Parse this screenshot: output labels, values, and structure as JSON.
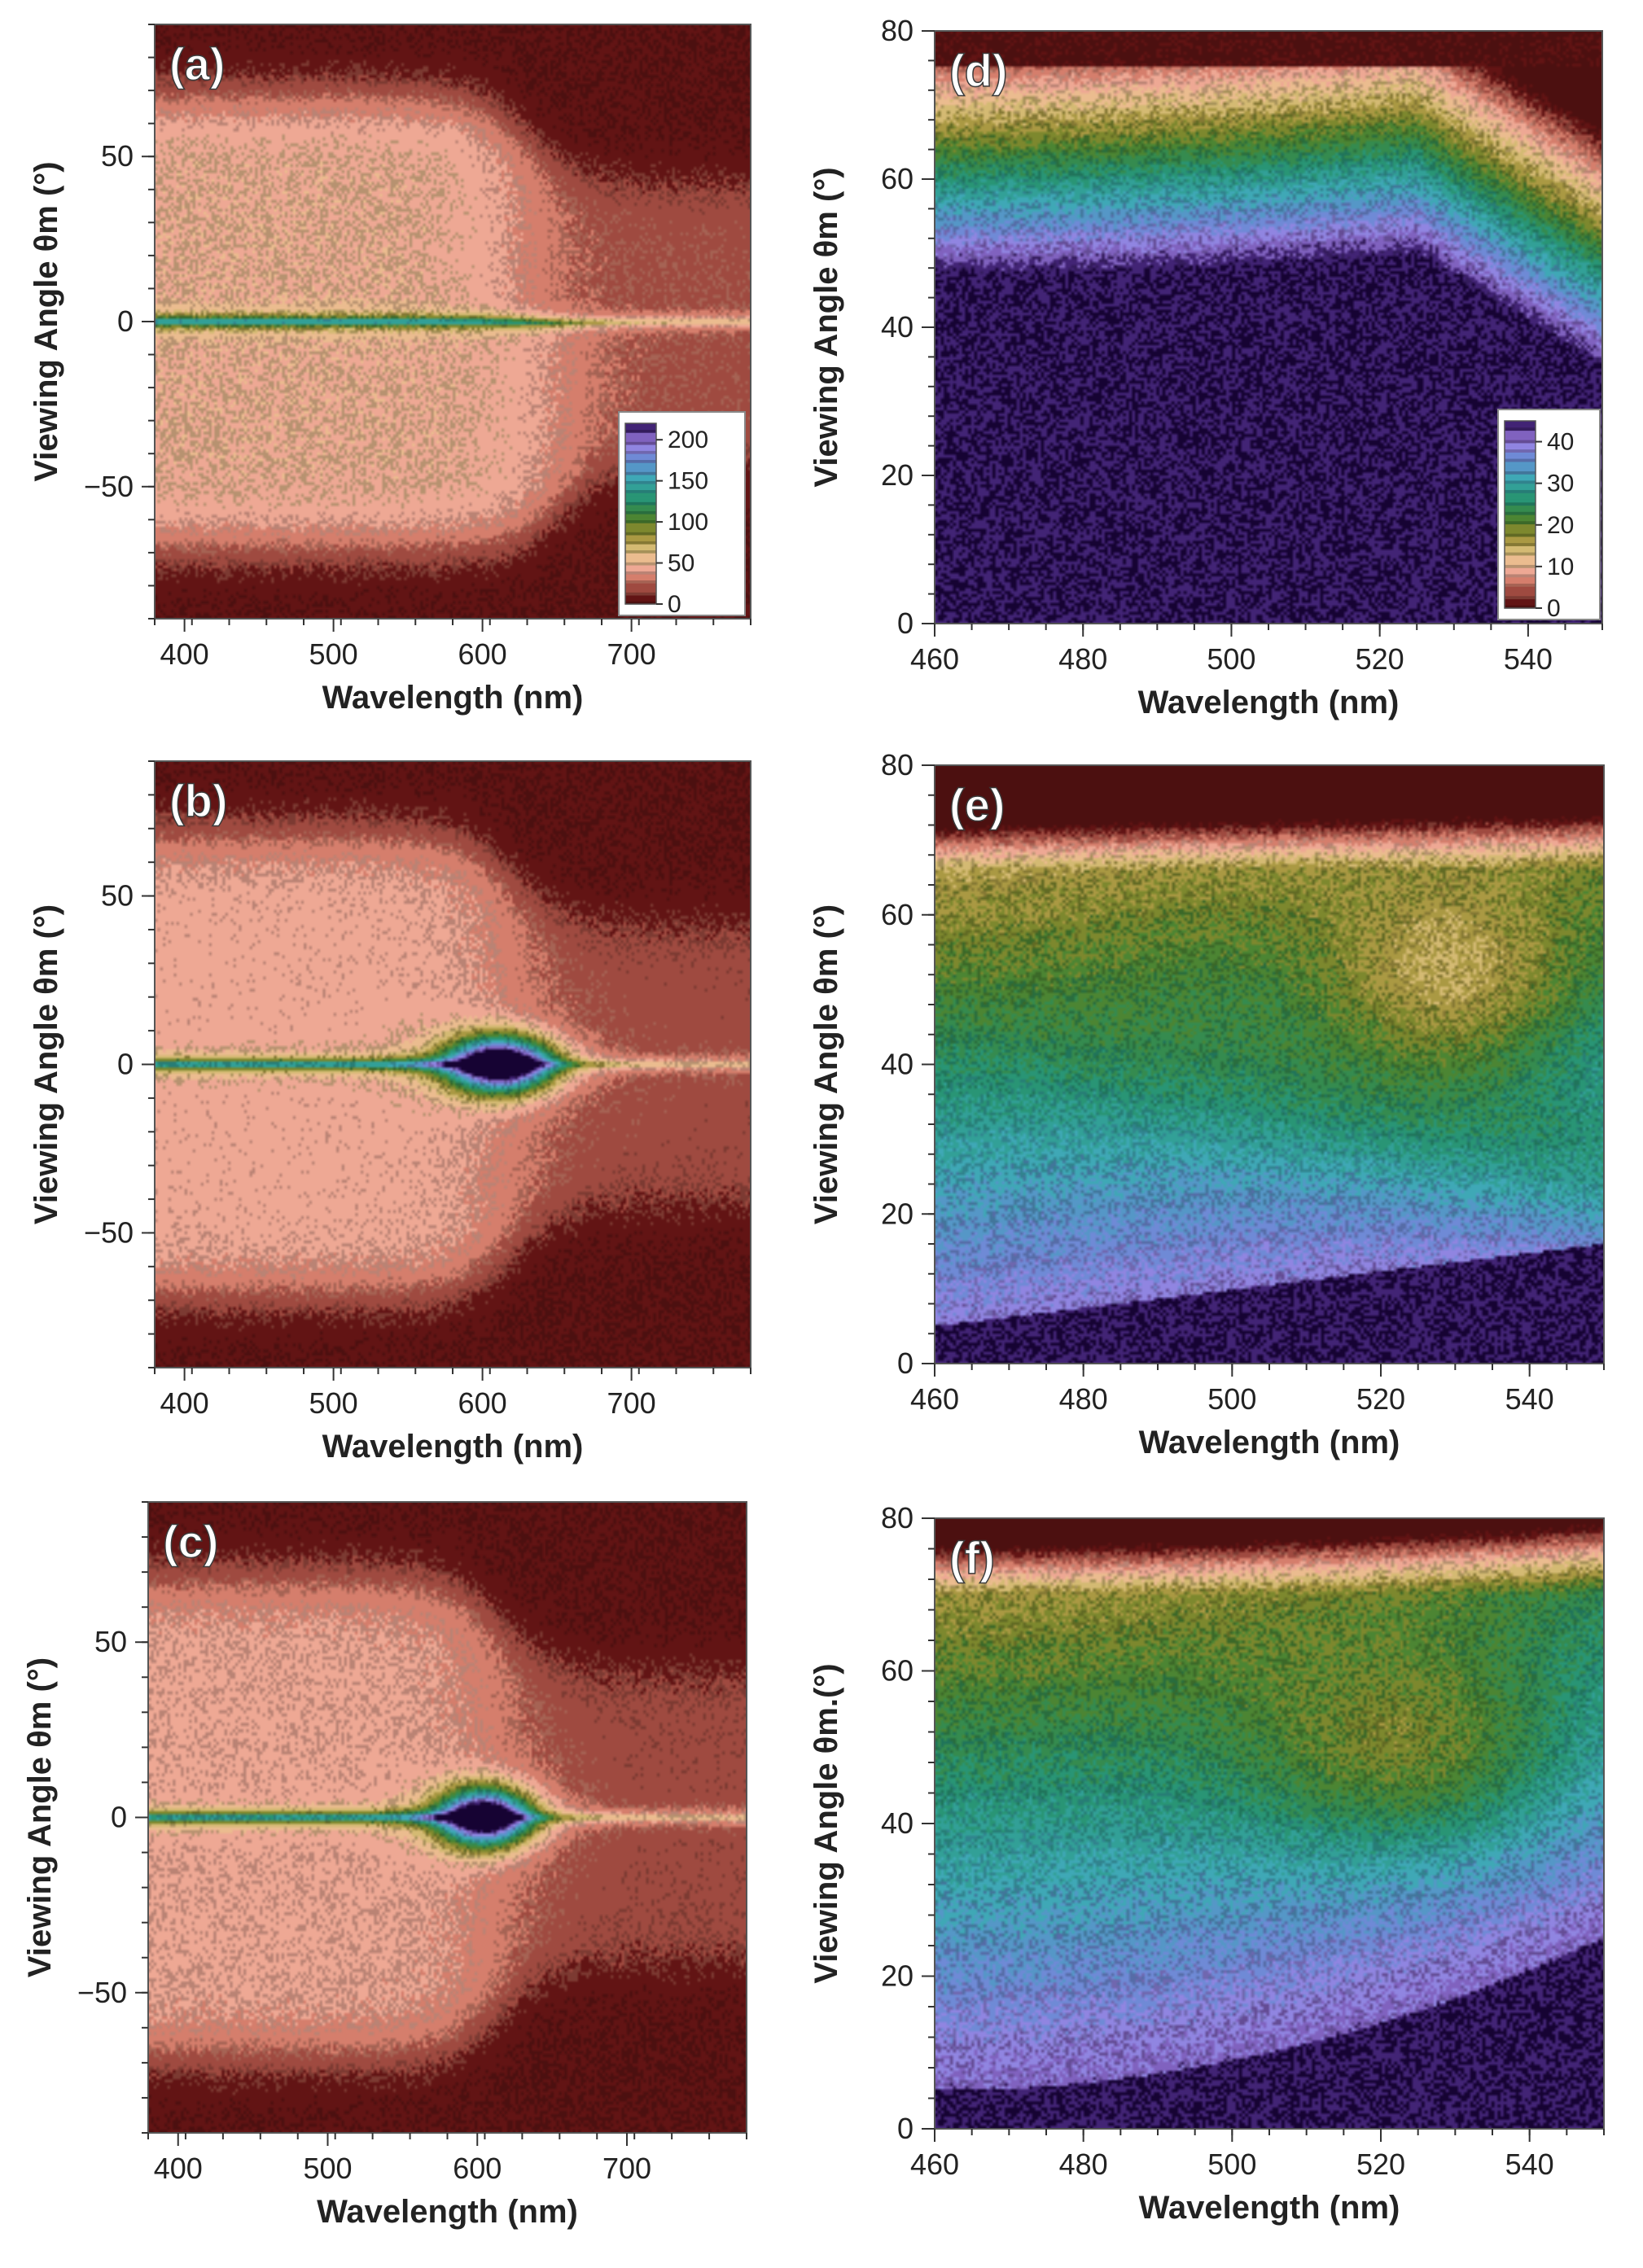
{
  "chart_data": [
    {
      "id": "a",
      "type": "heatmap",
      "panel_label": "(a)",
      "xlabel": "Wavelength (nm)",
      "ylabel": "Viewing Angle θm (°)",
      "xlim": [
        380,
        780
      ],
      "ylim": [
        -90,
        90
      ],
      "xticks": [
        400,
        500,
        600,
        700
      ],
      "yticks": [
        -50,
        0,
        50
      ],
      "colorbar": {
        "ticks": [
          0,
          50,
          100,
          150,
          200
        ],
        "range": [
          0,
          220
        ]
      },
      "model": {
        "kind": "symmetric",
        "edge_nm": 630,
        "edge_nm_low": 655,
        "plateau": 45,
        "spot": null
      }
    },
    {
      "id": "b",
      "type": "heatmap",
      "panel_label": "(b)",
      "xlabel": "Wavelength (nm)",
      "ylabel": "Viewing Angle θm (°)",
      "xlim": [
        380,
        780
      ],
      "ylim": [
        -90,
        90
      ],
      "xticks": [
        400,
        500,
        600,
        700
      ],
      "yticks": [
        -50,
        0,
        50
      ],
      "colorbar": null,
      "model": {
        "kind": "symmetric",
        "edge_nm": 620,
        "edge_nm_low": 620,
        "plateau": 40,
        "spot": {
          "center_nm": 612,
          "width_nm": 32,
          "peak": 210
        }
      }
    },
    {
      "id": "c",
      "type": "heatmap",
      "panel_label": "(c)",
      "xlabel": "Wavelength (nm)",
      "ylabel": "Viewing Angle θm (°)",
      "xlim": [
        380,
        780
      ],
      "ylim": [
        -90,
        90
      ],
      "xticks": [
        400,
        500,
        600,
        700
      ],
      "yticks": [
        -50,
        0,
        50
      ],
      "colorbar": null,
      "model": {
        "kind": "symmetric",
        "edge_nm": 615,
        "edge_nm_low": 615,
        "plateau": 38,
        "spot": {
          "center_nm": 605,
          "width_nm": 28,
          "peak": 200
        }
      }
    },
    {
      "id": "d",
      "type": "heatmap",
      "panel_label": "(d)",
      "xlabel": "Wavelength (nm)",
      "ylabel": "Viewing Angle θm (°)",
      "xlim": [
        460,
        550
      ],
      "ylim": [
        0,
        80
      ],
      "xticks": [
        460,
        480,
        500,
        520,
        540
      ],
      "yticks": [
        0,
        20,
        40,
        60,
        80
      ],
      "colorbar": {
        "ticks": [
          0,
          10,
          20,
          30,
          40
        ],
        "range": [
          0,
          45
        ]
      },
      "model": {
        "kind": "zoom",
        "variant": "d"
      }
    },
    {
      "id": "e",
      "type": "heatmap",
      "panel_label": "(e)",
      "xlabel": "Wavelength (nm)",
      "ylabel": "Viewing Angle θm (°)",
      "xlim": [
        460,
        550
      ],
      "ylim": [
        0,
        80
      ],
      "xticks": [
        460,
        480,
        500,
        520,
        540
      ],
      "yticks": [
        0,
        20,
        40,
        60,
        80
      ],
      "colorbar": null,
      "model": {
        "kind": "zoom",
        "variant": "e"
      }
    },
    {
      "id": "f",
      "type": "heatmap",
      "panel_label": "(f)",
      "xlabel": "Wavelength (nm)",
      "ylabel": "Viewing Angle θm.(°)",
      "xlim": [
        460,
        550
      ],
      "ylim": [
        0,
        80
      ],
      "xticks": [
        460,
        480,
        500,
        520,
        540
      ],
      "yticks": [
        0,
        20,
        40,
        60,
        80
      ],
      "colorbar": null,
      "model": {
        "kind": "zoom",
        "variant": "f"
      }
    }
  ]
}
